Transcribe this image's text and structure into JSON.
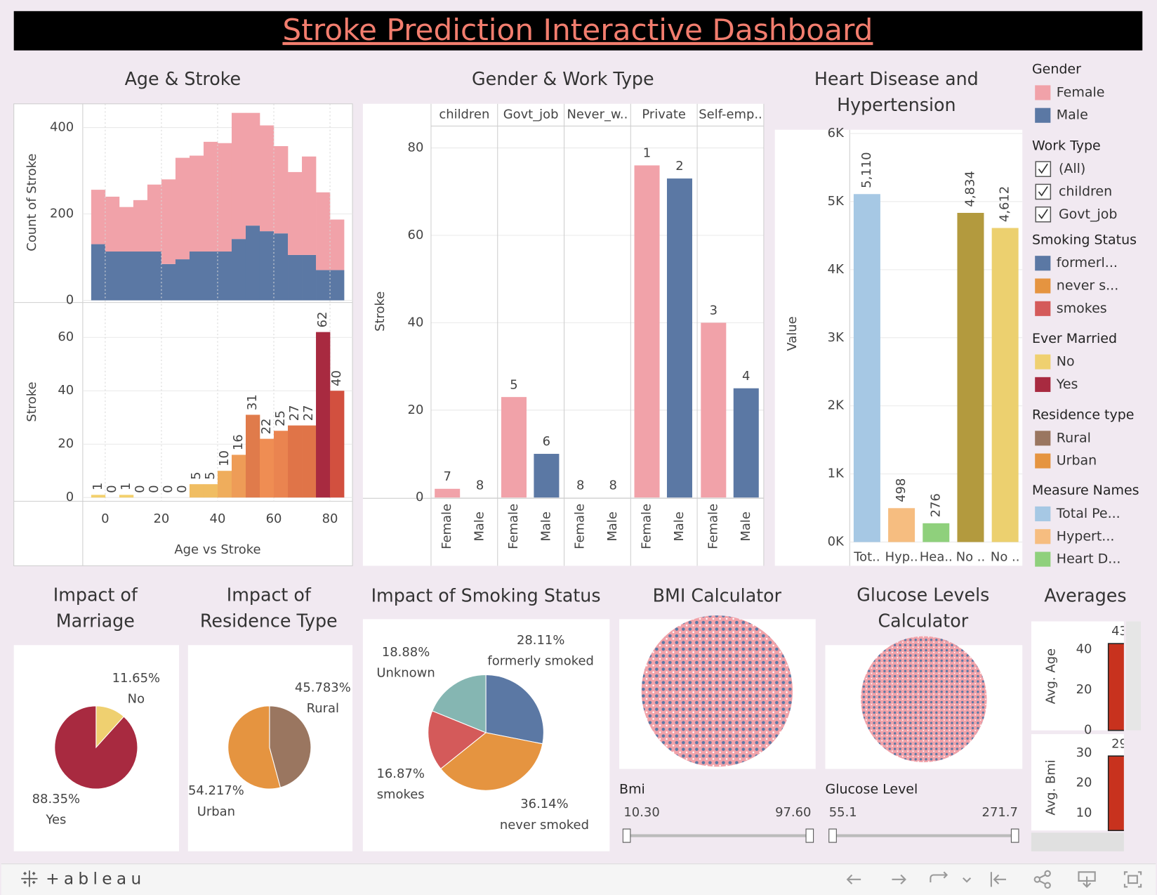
{
  "title": "Stroke Prediction Interactive Dashboard",
  "chart_data": [
    {
      "type": "histogram",
      "title": "Age & Stroke",
      "ylabel": "Count of Stroke",
      "bins": [
        -5,
        0,
        5,
        10,
        15,
        20,
        25,
        30,
        35,
        40,
        45,
        50,
        55,
        60,
        65,
        70,
        75,
        80,
        85
      ],
      "series": [
        {
          "name": "Male",
          "color": "#5b78a4",
          "values": [
            130,
            113,
            113,
            113,
            113,
            84,
            95,
            113,
            113,
            113,
            142,
            173,
            160,
            155,
            105,
            105,
            70,
            70
          ]
        },
        {
          "name": "Female",
          "color": "#f1a2a9",
          "values": [
            126,
            127,
            103,
            119,
            155,
            196,
            235,
            222,
            254,
            251,
            292,
            261,
            245,
            202,
            192,
            228,
            180,
            117
          ]
        }
      ],
      "stacked": true,
      "xlim": [
        -8,
        88
      ],
      "ylim": [
        0,
        455
      ],
      "yticks": [
        0,
        200,
        400
      ],
      "grid": true
    },
    {
      "type": "histogram",
      "xlabel": "Age vs Stroke",
      "ylabel": "Stroke",
      "bins": [
        -5,
        0,
        5,
        10,
        15,
        20,
        25,
        30,
        35,
        40,
        45,
        50,
        55,
        60,
        65,
        70,
        75,
        80,
        85
      ],
      "values": [
        1,
        0,
        1,
        0,
        0,
        0,
        0,
        5,
        5,
        10,
        16,
        31,
        22,
        25,
        27,
        27,
        62,
        40
      ],
      "colors": [
        "#f3d06c",
        "#f3d06c",
        "#f3d06c",
        "#f3d06c",
        "#f3d06c",
        "#f3d06c",
        "#f3d06c",
        "#f0bd62",
        "#f0bd62",
        "#efad5c",
        "#ee9c57",
        "#e07b4b",
        "#ef8d53",
        "#ea8450",
        "#e07448",
        "#e07448",
        "#a82a40",
        "#d2503f"
      ],
      "xlim": [
        -8,
        88
      ],
      "xticks": [
        0,
        20,
        40,
        60,
        80
      ],
      "ylim": [
        -1.4,
        72.5
      ],
      "yticks": [
        0,
        20,
        40,
        60
      ],
      "grid": true
    },
    {
      "type": "bar",
      "title": "Gender & Work Type",
      "ylabel": "Stroke",
      "categories": [
        "children",
        "Govt_job",
        "Never_w..",
        "Private",
        "Self-emp.."
      ],
      "series": [
        {
          "name": "Female",
          "color": "#f1a2a9",
          "values": [
            2,
            23,
            0,
            76,
            40
          ],
          "ranks": [
            7,
            5,
            8,
            1,
            3
          ]
        },
        {
          "name": "Male",
          "color": "#5b78a4",
          "values": [
            0,
            10,
            0,
            73,
            25
          ],
          "ranks": [
            8,
            6,
            8,
            2,
            4
          ]
        }
      ],
      "ylim": [
        0,
        85
      ],
      "yticks": [
        0,
        20,
        40,
        60,
        80
      ],
      "grid": true
    },
    {
      "type": "bar",
      "title": [
        "Heart Disease and",
        "Hypertension"
      ],
      "ylabel": "Value",
      "categories": [
        "Tot..",
        "Hyp..",
        "Hea..",
        "No ..",
        "No .."
      ],
      "values": [
        5110,
        498,
        276,
        4834,
        4612
      ],
      "value_labels": [
        "5,110",
        "498",
        "276",
        "4,834",
        "4,612"
      ],
      "colors": [
        "#a6c8e4",
        "#f6bd80",
        "#8fd07c",
        "#b39a3e",
        "#ecd06f"
      ],
      "ylim": [
        0,
        6000
      ],
      "yticks": [
        {
          "value": 0,
          "label": "0K"
        },
        {
          "value": 1000,
          "label": "1K"
        },
        {
          "value": 2000,
          "label": "2K"
        },
        {
          "value": 3000,
          "label": "3K"
        },
        {
          "value": 4000,
          "label": "4K"
        },
        {
          "value": 5000,
          "label": "5K"
        },
        {
          "value": 6000,
          "label": "6K"
        }
      ],
      "grid": true
    },
    {
      "type": "pie",
      "title": [
        "Impact of",
        "Marriage"
      ],
      "categories": [
        "No",
        "Yes"
      ],
      "values": [
        11.65,
        88.35
      ],
      "value_labels": [
        "11.65%",
        "88.35%"
      ],
      "colors": [
        "#efd070",
        "#a82a40"
      ]
    },
    {
      "type": "pie",
      "title": [
        "Impact of",
        "Residence Type"
      ],
      "categories": [
        "Rural",
        "Urban"
      ],
      "values": [
        45.783,
        54.217
      ],
      "value_labels": [
        "45.783%",
        "54.217%"
      ],
      "colors": [
        "#9a7660",
        "#e59440"
      ]
    },
    {
      "type": "pie",
      "title": "Impact of Smoking Status",
      "categories": [
        "formerly smoked",
        "never smoked",
        "smokes",
        "Unknown"
      ],
      "values": [
        28.11,
        36.14,
        16.87,
        18.88
      ],
      "value_labels": [
        "28.11%",
        "36.14%",
        "16.87%",
        "18.88%"
      ],
      "colors": [
        "#5b78a4",
        "#e59440",
        "#d45a5a",
        "#85b6b2"
      ]
    },
    {
      "type": "bar",
      "title": "Averages",
      "panels": [
        {
          "ylabel": "Avg. Age",
          "values": [
            43
          ],
          "color": "#c8321e",
          "ylim": [
            0,
            54
          ],
          "yticks": [
            0,
            20,
            40
          ]
        },
        {
          "ylabel": "Avg. Bmi",
          "values": [
            29
          ],
          "color": "#c8321e",
          "ylim": [
            4.2,
            36.3
          ],
          "yticks": [
            10,
            20,
            30
          ]
        }
      ]
    }
  ],
  "legends": [
    {
      "title": "Gender",
      "items": [
        {
          "label": "Female",
          "color": "#f1a2a9"
        },
        {
          "label": "Male",
          "color": "#5b78a4"
        }
      ]
    },
    {
      "title": "Work Type",
      "checkboxes": [
        "(All)",
        "children",
        "Govt_job"
      ]
    },
    {
      "title": "Smoking Status",
      "items": [
        {
          "label": "formerl...",
          "color": "#5b78a4"
        },
        {
          "label": "never s...",
          "color": "#e59440"
        },
        {
          "label": "smokes",
          "color": "#d45a5a"
        }
      ]
    },
    {
      "title": "Ever Married",
      "items": [
        {
          "label": "No",
          "color": "#efd070"
        },
        {
          "label": "Yes",
          "color": "#a82a40"
        }
      ]
    },
    {
      "title": "Residence type",
      "items": [
        {
          "label": "Rural",
          "color": "#9a7660"
        },
        {
          "label": "Urban",
          "color": "#e59440"
        }
      ]
    },
    {
      "title": "Measure Names",
      "items": [
        {
          "label": "Total Pe...",
          "color": "#a6c8e4"
        },
        {
          "label": "Hypert...",
          "color": "#f6bd80"
        },
        {
          "label": "Heart D...",
          "color": "#8fd07c"
        }
      ]
    }
  ],
  "calculators": [
    {
      "title": "BMI Calculator",
      "label": "Bmi",
      "min": "10.30",
      "max": "97.60"
    },
    {
      "title": [
        "Glucose Levels",
        "Calculator"
      ],
      "label": "Glucose Level",
      "min": "55.1",
      "max": "271.7"
    }
  ],
  "footer": {
    "logo": "+ableau"
  }
}
